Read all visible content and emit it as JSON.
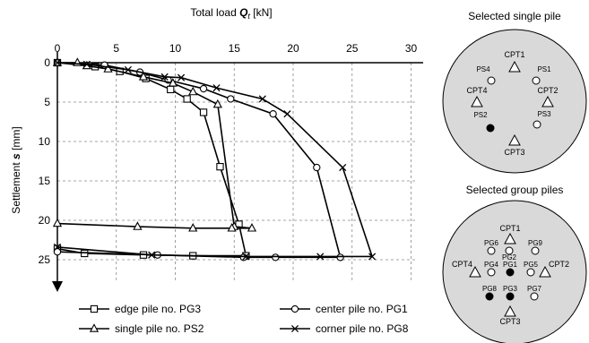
{
  "chart_data": {
    "type": "line",
    "title": "",
    "xlabel_main": "Total load ",
    "xlabel_sym": "Q",
    "xlabel_sub": "t",
    "xlabel_unit": " [kN]",
    "ylabel_main": "Settlement ",
    "ylabel_sym": "s",
    "ylabel_unit": " [mm]",
    "x_ticks": [
      "0",
      "5",
      "10",
      "15",
      "20",
      "25",
      "30"
    ],
    "y_ticks": [
      "0",
      "5",
      "10",
      "15",
      "20",
      "25"
    ],
    "xlim": [
      0,
      31
    ],
    "ylim": [
      0,
      28
    ],
    "grid": "dashed",
    "legend_position": "bottom",
    "series": [
      {
        "name": "edge pile no. PG3",
        "marker": "square",
        "points": [
          [
            0,
            0
          ],
          [
            3.2,
            0.5
          ],
          [
            5.3,
            1.1
          ],
          [
            7.5,
            2
          ],
          [
            9.6,
            3.4
          ],
          [
            11,
            4.6
          ],
          [
            12.4,
            6.3
          ],
          [
            13.8,
            13.2
          ],
          [
            15.4,
            20.5
          ],
          [
            16,
            24.5
          ],
          [
            11.5,
            24.5
          ],
          [
            7.3,
            24.4
          ],
          [
            2.3,
            24.2
          ],
          [
            0,
            23.6
          ]
        ]
      },
      {
        "name": "center pile no. PG1",
        "marker": "circle",
        "points": [
          [
            0,
            0
          ],
          [
            4,
            0.3
          ],
          [
            7,
            1.2
          ],
          [
            9.4,
            2.2
          ],
          [
            12.4,
            3.3
          ],
          [
            14.7,
            4.6
          ],
          [
            18.3,
            6.5
          ],
          [
            22,
            13.3
          ],
          [
            24,
            24.7
          ],
          [
            18.5,
            24.7
          ],
          [
            15.8,
            24.7
          ],
          [
            8.5,
            24.4
          ],
          [
            0,
            24
          ]
        ]
      },
      {
        "name": "single pile no. PS2",
        "marker": "triangle",
        "points": [
          [
            0,
            0
          ],
          [
            1.7,
            0
          ],
          [
            2.5,
            0.4
          ],
          [
            4.3,
            0.8
          ],
          [
            7.3,
            1.8
          ],
          [
            9.8,
            2.6
          ],
          [
            11.5,
            3.7
          ],
          [
            13.6,
            5.3
          ],
          [
            15,
            20.8
          ],
          [
            16.5,
            21
          ],
          [
            14.8,
            21
          ],
          [
            11.5,
            21
          ],
          [
            6.8,
            20.8
          ],
          [
            0,
            20.4
          ]
        ]
      },
      {
        "name": "corner pile no. PG8",
        "marker": "cross",
        "points": [
          [
            0,
            0
          ],
          [
            2.5,
            0.2
          ],
          [
            6,
            0.9
          ],
          [
            9.1,
            1.8
          ],
          [
            10.5,
            1.9
          ],
          [
            13.5,
            3.2
          ],
          [
            17.4,
            4.6
          ],
          [
            19.5,
            6.5
          ],
          [
            24.2,
            13.3
          ],
          [
            26.7,
            24.6
          ],
          [
            22.3,
            24.6
          ],
          [
            16,
            24.6
          ],
          [
            8,
            24.4
          ],
          [
            0,
            23.4
          ]
        ]
      }
    ]
  },
  "single_pile_panel": {
    "title": "Selected single pile",
    "points": [
      {
        "label": "PS4",
        "type": "open_circle"
      },
      {
        "label": "PS1",
        "type": "open_circle"
      },
      {
        "label": "PS2",
        "type": "filled_circle"
      },
      {
        "label": "PS3",
        "type": "open_circle"
      },
      {
        "label": "CPT1",
        "type": "triangle"
      },
      {
        "label": "CPT2",
        "type": "triangle"
      },
      {
        "label": "CPT3",
        "type": "triangle"
      },
      {
        "label": "CPT4",
        "type": "triangle"
      }
    ]
  },
  "group_pile_panel": {
    "title": "Selected group piles",
    "points": [
      {
        "label": "PG6",
        "type": "open_circle"
      },
      {
        "label": "PG2",
        "type": "open_circle"
      },
      {
        "label": "PG9",
        "type": "open_circle"
      },
      {
        "label": "PG4",
        "type": "open_circle"
      },
      {
        "label": "PG1",
        "type": "filled_circle"
      },
      {
        "label": "PG5",
        "type": "open_circle"
      },
      {
        "label": "PG8",
        "type": "filled_circle"
      },
      {
        "label": "PG3",
        "type": "filled_circle"
      },
      {
        "label": "PG7",
        "type": "open_circle"
      },
      {
        "label": "CPT1",
        "type": "triangle"
      },
      {
        "label": "CPT2",
        "type": "triangle"
      },
      {
        "label": "CPT3",
        "type": "triangle"
      },
      {
        "label": "CPT4",
        "type": "triangle"
      }
    ]
  }
}
